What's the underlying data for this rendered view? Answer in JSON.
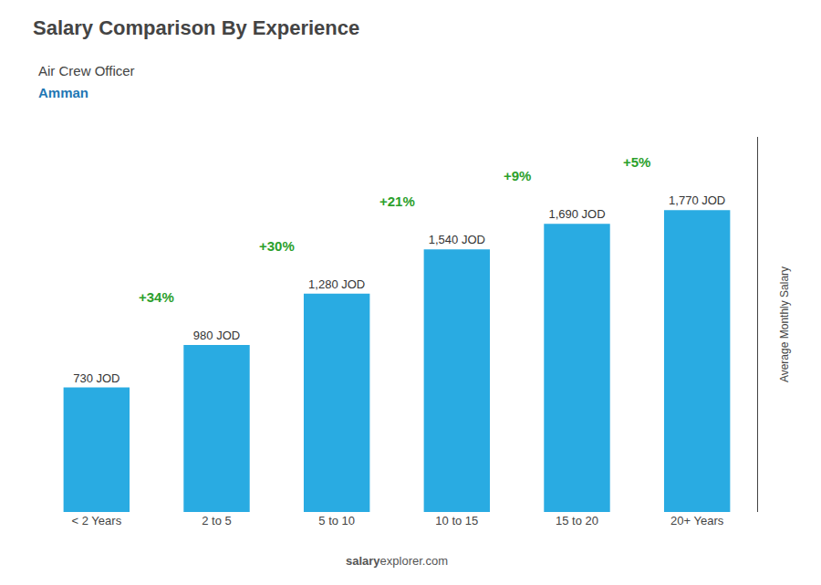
{
  "chart_data": {
    "type": "bar",
    "title": "Salary Comparison By Experience",
    "subtitle": [
      "Air Crew Officer",
      "Amman"
    ],
    "categories": [
      "< 2 Years",
      "2 to 5",
      "5 to 10",
      "10 to 15",
      "15 to 20",
      "20+ Years"
    ],
    "values": [
      730,
      980,
      1280,
      1540,
      1690,
      1770
    ],
    "value_labels": [
      "730 JOD",
      "980 JOD",
      "1,280 JOD",
      "1,540 JOD",
      "1,690 JOD",
      "1,770 JOD"
    ],
    "data_labels": true,
    "color": "#29ABE2",
    "annotations": [
      "+34%",
      "+30%",
      "+21%",
      "+9%",
      "+5%"
    ],
    "ylabel": "Average Monthly Salary",
    "watermark": [
      "salary",
      "explorer.com"
    ],
    "ylim": [
      0,
      2200
    ],
    "yticks": [],
    "grid": false,
    "tick_labels": "x"
  }
}
